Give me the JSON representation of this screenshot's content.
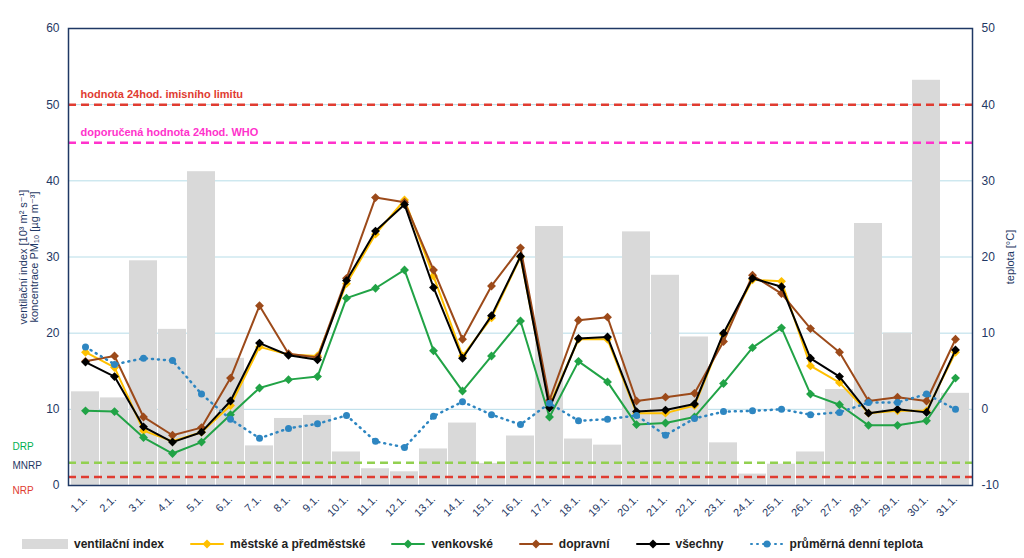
{
  "chart_data": {
    "type": "line",
    "x": [
      "1.1.",
      "2.1.",
      "3.1.",
      "4.1.",
      "5.1.",
      "6.1.",
      "7.1.",
      "8.1.",
      "9.1.",
      "10.1.",
      "11.1.",
      "12.1.",
      "13.1.",
      "14.1.",
      "15.1.",
      "16.1.",
      "17.1.",
      "18.1.",
      "19.1.",
      "20.1.",
      "21.1.",
      "22.1.",
      "23.1.",
      "24.1.",
      "25.1.",
      "26.1.",
      "27.1.",
      "28.1.",
      "29.1.",
      "30.1.",
      "31.1."
    ],
    "ylabel": [
      "ventilační index [10³ m² s⁻¹]",
      "koncentrace PM₁₀ [µg m⁻³]"
    ],
    "y2label": "teplota [°C]",
    "ylim": [
      0,
      60
    ],
    "yticks": [
      0,
      10,
      20,
      30,
      40,
      50,
      60
    ],
    "y2lim": [
      -10,
      50
    ],
    "y2ticks": [
      -10,
      0,
      10,
      20,
      30,
      40,
      50
    ],
    "grid": true,
    "legend": "bottom",
    "series": [
      {
        "name": "ventilační index",
        "type": "bar",
        "color": "#d9d9d9",
        "values": [
          12.3,
          11.5,
          29.5,
          20.5,
          41.2,
          16.7,
          5.2,
          8.8,
          9.2,
          4.4,
          2.2,
          1.8,
          4.8,
          8.2,
          2.9,
          6.5,
          34,
          6.1,
          5.3,
          33.3,
          27.6,
          19.5,
          5.6,
          1.5,
          2.8,
          4.4,
          12.6,
          34.4,
          20.0,
          53.2,
          12.1
        ]
      },
      {
        "name": "městské a předměstské",
        "type": "line",
        "color": "#ffc000",
        "marker": "diamond",
        "line_style": "solid",
        "values": [
          17.5,
          15.5,
          7.2,
          5.8,
          7.0,
          10.5,
          18.2,
          17.2,
          17.0,
          26.5,
          33.0,
          37.5,
          27.5,
          17.0,
          22.0,
          30.0,
          10.5,
          19.2,
          19.2,
          9.5,
          9.5,
          10.5,
          19.8,
          27.0,
          26.8,
          15.7,
          13.5,
          9.5,
          9.8,
          9.8,
          17.5
        ]
      },
      {
        "name": "venkovské",
        "type": "line",
        "color": "#21a346",
        "marker": "diamond",
        "line_style": "solid",
        "values": [
          9.8,
          9.7,
          6.3,
          4.2,
          5.7,
          9.3,
          12.8,
          13.9,
          14.3,
          24.6,
          25.9,
          28.3,
          17.7,
          12.4,
          17.0,
          21.6,
          9.0,
          16.3,
          13.6,
          8.0,
          8.2,
          9.0,
          13.4,
          18.1,
          20.7,
          12.0,
          10.6,
          7.9,
          7.9,
          8.5,
          14.1
        ]
      },
      {
        "name": "dopravní",
        "type": "line",
        "color": "#9c4a1a",
        "marker": "diamond",
        "line_style": "solid",
        "values": [
          16.3,
          17.0,
          9.0,
          6.6,
          7.6,
          14.1,
          23.6,
          17.3,
          16.8,
          27.2,
          37.8,
          37.2,
          28.3,
          19.2,
          26.2,
          31.2,
          11.2,
          21.7,
          22.1,
          11.1,
          11.6,
          12.1,
          18.9,
          27.6,
          25.2,
          20.6,
          17.5,
          11.1,
          11.6,
          11.1,
          19.2
        ]
      },
      {
        "name": "všechny",
        "type": "line",
        "color": "#000000",
        "marker": "diamond",
        "line_style": "solid",
        "values": [
          16.2,
          14.3,
          7.7,
          5.7,
          7.0,
          11.1,
          18.7,
          17.1,
          16.5,
          26.9,
          33.4,
          36.9,
          26.0,
          16.7,
          22.3,
          30.1,
          10.2,
          19.3,
          19.5,
          9.7,
          9.9,
          10.7,
          20.0,
          27.2,
          26.1,
          16.7,
          14.3,
          9.5,
          10.0,
          9.6,
          17.8
        ]
      },
      {
        "name": "průměrná denní teplota",
        "type": "line",
        "axis": "y2",
        "color": "#2e86c1",
        "marker": "circle",
        "line_style": "dotted",
        "values": [
          8.2,
          5.9,
          6.7,
          6.4,
          2.0,
          -1.3,
          -3.8,
          -2.5,
          -1.9,
          -0.8,
          -4.2,
          -5.0,
          -0.9,
          1.0,
          -0.7,
          -2.0,
          0.8,
          -1.5,
          -1.3,
          -0.8,
          -3.4,
          -1.2,
          -0.3,
          -0.2,
          0.0,
          -0.7,
          -0.4,
          0.9,
          0.9,
          2.0,
          0.0
        ]
      }
    ],
    "reference_lines": [
      {
        "value": 50,
        "label": "hodnota 24hod. imisního limitu",
        "color": "#e03c31",
        "line_style": "dashed"
      },
      {
        "value": 45,
        "label": "doporučená hodnota 24hod. WHO",
        "color": "#ff33cc",
        "line_style": "dashed"
      },
      {
        "value": 3,
        "color": "#92d050",
        "line_style": "dashed"
      },
      {
        "value": 1.1,
        "color": "#e03c31",
        "line_style": "dashed"
      }
    ],
    "ventilation_classes": [
      {
        "label": "DRP",
        "color": "#00b050"
      },
      {
        "label": "MNRP",
        "color": "#1f3864"
      },
      {
        "label": "NRP",
        "color": "#e03c31"
      }
    ]
  }
}
